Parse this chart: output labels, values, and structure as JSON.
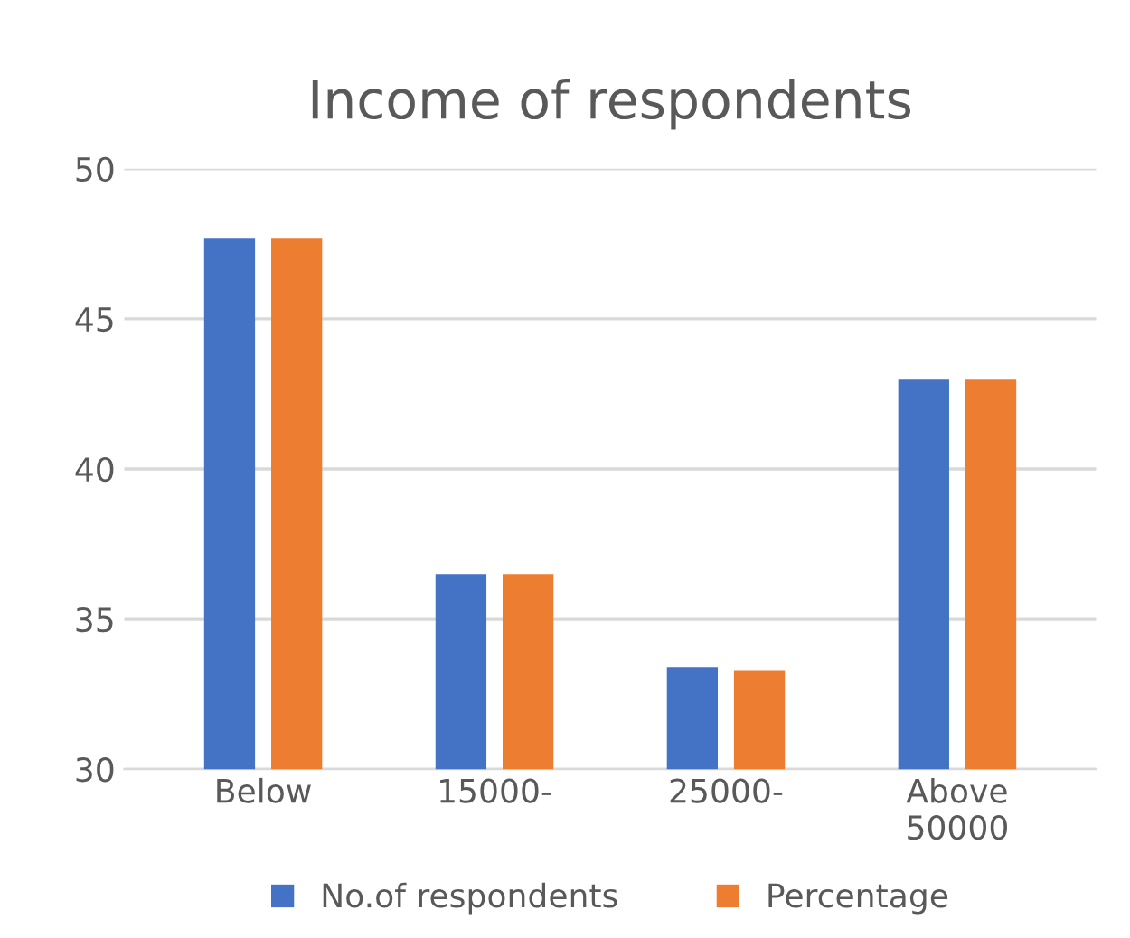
{
  "chart_data": {
    "type": "bar",
    "title": "Income of respondents",
    "categories": [
      "Below",
      "15000-",
      "25000-",
      "Above\n50000"
    ],
    "series": [
      {
        "name": "No.of respondents",
        "color": "#4472c4",
        "values": [
          47.7,
          36.5,
          33.4,
          43.0
        ]
      },
      {
        "name": "Percentage",
        "color": "#ed7d31",
        "values": [
          47.7,
          36.5,
          33.3,
          43.0
        ]
      }
    ],
    "ylim": [
      30,
      50
    ],
    "yticks": [
      30,
      35,
      40,
      45,
      50
    ],
    "grid": "y",
    "legend": "bottom"
  }
}
